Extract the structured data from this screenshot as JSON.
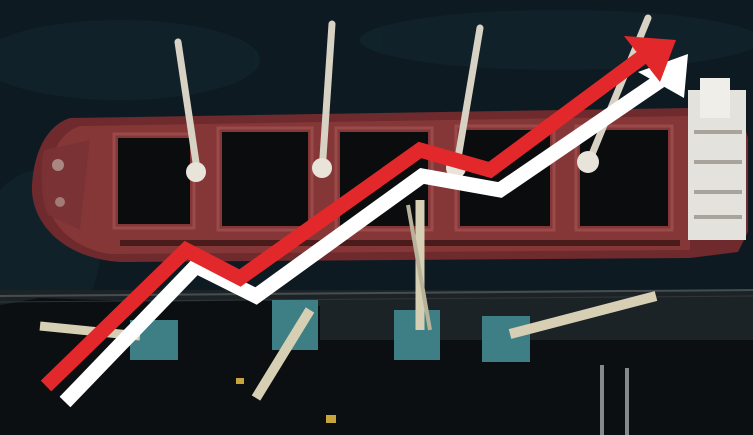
{
  "scene": {
    "subject": "aerial-bulk-carrier-at-coal-terminal",
    "colors": {
      "water": "#0d1a22",
      "water_light": "#16313a",
      "hull": "#6e2a2c",
      "hull_dark": "#4a1c1e",
      "deck": "#8a3a3a",
      "hold": "#0a0c0e",
      "crane": "#d8d2c4",
      "quay": "#1c2327",
      "coal": "#0c0f12",
      "loader": "#4a8a8c",
      "arrow_red": "#e3282b",
      "arrow_white": "#ffffff"
    }
  },
  "overlay": {
    "trend": "rising",
    "red_arrow_icon": "trend-up-arrow-red-icon",
    "white_arrow_icon": "trend-up-arrow-white-icon"
  }
}
